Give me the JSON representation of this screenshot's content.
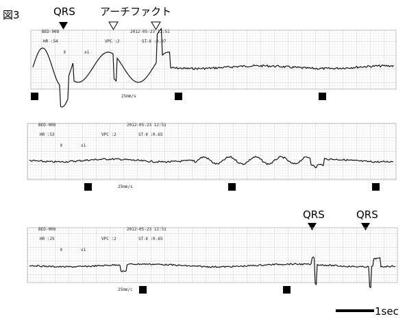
{
  "figure_label": "図3",
  "annotations": {
    "qrs_top": "QRS",
    "artifact": "アーチファクト",
    "qrs_bottom_1": "QRS",
    "qrs_bottom_2": "QRS"
  },
  "scale_bar": "1sec",
  "strips": [
    {
      "bed": "BED-008",
      "datetime": "2012-05-23 12:51",
      "hr": "HR :54",
      "vpc": "VPC :2",
      "st": "ST-Ⅱ :0.07",
      "lead": "Ⅱ",
      "gain": "x1",
      "speed": "25mm/s"
    },
    {
      "bed": "BED-008",
      "datetime": "2012-05-23 12:51",
      "hr": "HR :53",
      "vpc": "VPC :2",
      "st": "ST-Ⅱ :0.65",
      "lead": "Ⅱ",
      "gain": "x1",
      "speed": "25mm/s"
    },
    {
      "bed": "BED-008",
      "datetime": "2012-05-23 12:51",
      "hr": "HR :25",
      "vpc": "VPC :2",
      "st": "ST-Ⅱ :0.65",
      "lead": "Ⅱ",
      "gain": "x1",
      "speed": "25mm/c"
    }
  ]
}
